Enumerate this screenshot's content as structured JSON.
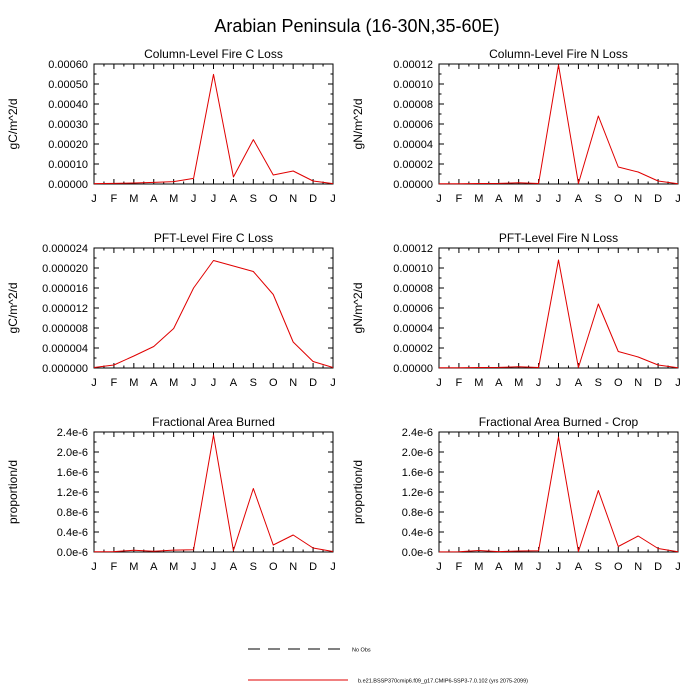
{
  "page": {
    "title": "Arabian Peninsula (16-30N,35-60E)"
  },
  "colors": {
    "series": "#e00000",
    "axis": "#000000",
    "obs": "#000000"
  },
  "months": [
    "J",
    "F",
    "M",
    "A",
    "M",
    "J",
    "J",
    "A",
    "S",
    "O",
    "N",
    "D",
    "J"
  ],
  "chart_data": [
    {
      "type": "line",
      "title": "Column-Level Fire C Loss",
      "ylabel": "gC/m^2/d",
      "categories": [
        "J",
        "F",
        "M",
        "A",
        "M",
        "J",
        "J",
        "A",
        "S",
        "O",
        "N",
        "D",
        "J"
      ],
      "ylim": [
        0,
        0.0006
      ],
      "yticks": [
        "0.00000",
        "0.00010",
        "0.00020",
        "0.00030",
        "0.00040",
        "0.00050",
        "0.00060"
      ],
      "values": [
        2e-06,
        3e-06,
        5e-06,
        8e-06,
        1.2e-05,
        2.8e-05,
        0.000548,
        3.5e-05,
        0.000222,
        4.5e-05,
        6.5e-05,
        1.5e-05,
        2e-06
      ]
    },
    {
      "type": "line",
      "title": "Column-Level Fire N Loss",
      "ylabel": "gN/m^2/d",
      "categories": [
        "J",
        "F",
        "M",
        "A",
        "M",
        "J",
        "J",
        "A",
        "S",
        "O",
        "N",
        "D",
        "J"
      ],
      "ylim": [
        0,
        0.00012
      ],
      "yticks": [
        "0.00000",
        "0.00002",
        "0.00004",
        "0.00006",
        "0.00008",
        "0.00010",
        "0.00012"
      ],
      "values": [
        2e-07,
        3e-07,
        5e-07,
        6e-07,
        1.2e-06,
        5e-07,
        0.000119,
        5e-07,
        6.8e-05,
        1.7e-05,
        1.2e-05,
        3e-06,
        2e-07
      ]
    },
    {
      "type": "line",
      "title": "PFT-Level Fire C Loss",
      "ylabel": "gC/m^2/d",
      "categories": [
        "J",
        "F",
        "M",
        "A",
        "M",
        "J",
        "J",
        "A",
        "S",
        "O",
        "N",
        "D",
        "J"
      ],
      "ylim": [
        0,
        2.4e-05
      ],
      "yticks": [
        "0.000000",
        "0.000004",
        "0.000008",
        "0.000012",
        "0.000016",
        "0.000020",
        "0.000024"
      ],
      "values": [
        1e-07,
        6e-07,
        2.4e-06,
        4.3e-06,
        7.9e-06,
        1.6e-05,
        2.15e-05,
        2.04e-05,
        1.93e-05,
        1.47e-05,
        5.2e-06,
        1.3e-06,
        1e-07
      ]
    },
    {
      "type": "line",
      "title": "PFT-Level Fire N Loss",
      "ylabel": "gN/m^2/d",
      "categories": [
        "J",
        "F",
        "M",
        "A",
        "M",
        "J",
        "J",
        "A",
        "S",
        "O",
        "N",
        "D",
        "J"
      ],
      "ylim": [
        0,
        0.00012
      ],
      "yticks": [
        "0.00000",
        "0.00002",
        "0.00004",
        "0.00006",
        "0.00008",
        "0.00010",
        "0.00012"
      ],
      "values": [
        2e-07,
        3e-07,
        5e-07,
        6e-07,
        1.2e-06,
        5e-07,
        0.000108,
        5e-07,
        6.4e-05,
        1.65e-05,
        1.1e-05,
        3e-06,
        2e-07
      ]
    },
    {
      "type": "line",
      "title": "Fractional Area Burned",
      "ylabel": "proportion/d",
      "categories": [
        "J",
        "F",
        "M",
        "A",
        "M",
        "J",
        "J",
        "A",
        "S",
        "O",
        "N",
        "D",
        "J"
      ],
      "ylim": [
        0,
        2.4e-06
      ],
      "yticks": [
        "0.0e-6",
        "0.4e-6",
        "0.8e-6",
        "1.2e-6",
        "1.6e-6",
        "2.0e-6",
        "2.4e-6"
      ],
      "values": [
        5e-09,
        8e-09,
        3.5e-08,
        1.5e-08,
        3.8e-08,
        4.5e-08,
        2.34e-06,
        3e-08,
        1.27e-06,
        1.4e-07,
        3.4e-07,
        8e-08,
        1e-08
      ]
    },
    {
      "type": "line",
      "title": "Fractional Area Burned - Crop",
      "ylabel": "proportion/d",
      "categories": [
        "J",
        "F",
        "M",
        "A",
        "M",
        "J",
        "J",
        "A",
        "S",
        "O",
        "N",
        "D",
        "J"
      ],
      "ylim": [
        0,
        2.4e-06
      ],
      "yticks": [
        "0.0e-6",
        "0.4e-6",
        "0.8e-6",
        "1.2e-6",
        "1.6e-6",
        "2.0e-6",
        "2.4e-6"
      ],
      "values": [
        3e-09,
        6e-09,
        3e-08,
        8e-09,
        2e-08,
        2.5e-08,
        2.3e-06,
        1e-08,
        1.23e-06,
        1.1e-07,
        3.2e-07,
        7e-08,
        5e-09
      ]
    }
  ],
  "legend": {
    "obs_label": "No Obs",
    "model_label": "b.e21.BSSP370cmip6.f09_g17.CMIP6-SSP3-7.0.102 (yrs 2075-2099)"
  }
}
